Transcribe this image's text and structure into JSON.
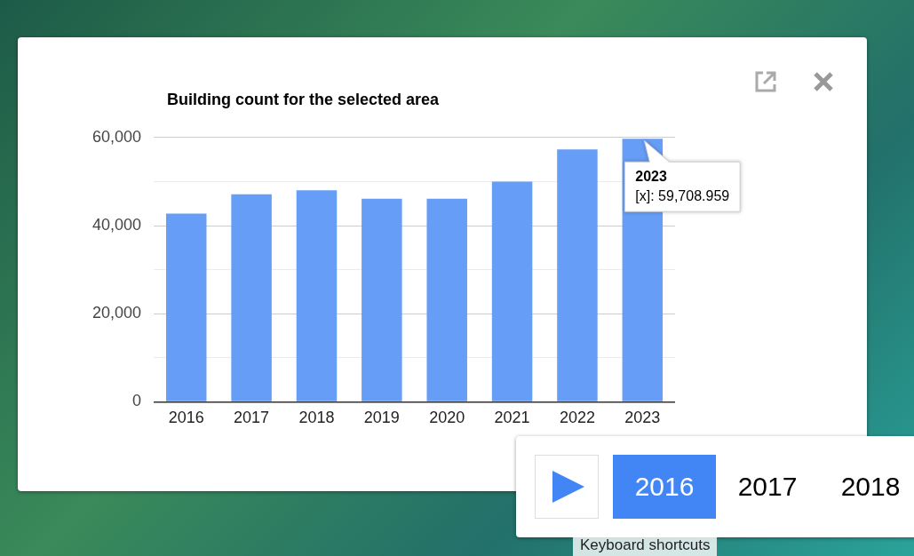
{
  "chart_data": {
    "type": "bar",
    "title": "Building count for the selected area",
    "categories": [
      "2016",
      "2017",
      "2018",
      "2019",
      "2020",
      "2021",
      "2022",
      "2023"
    ],
    "values": [
      42700,
      47100,
      48000,
      46100,
      46100,
      50000,
      57300,
      59708.959
    ],
    "color": "#669df6",
    "ylim": [
      0,
      60000
    ],
    "yticks": [
      {
        "value": 0,
        "label": "0"
      },
      {
        "value": 10000,
        "label": null
      },
      {
        "value": 20000,
        "label": "20,000"
      },
      {
        "value": 30000,
        "label": null
      },
      {
        "value": 40000,
        "label": "40,000"
      },
      {
        "value": 50000,
        "label": null
      },
      {
        "value": 60000,
        "label": "60,000"
      }
    ],
    "grid": "y",
    "annotations": [
      {
        "text": "2023\n[x]: 59,708.959",
        "x": "2023",
        "y": 59708.959
      },
      "2016",
      "2017",
      "2018",
      "Keyboard shortcuts"
    ]
  }
}
